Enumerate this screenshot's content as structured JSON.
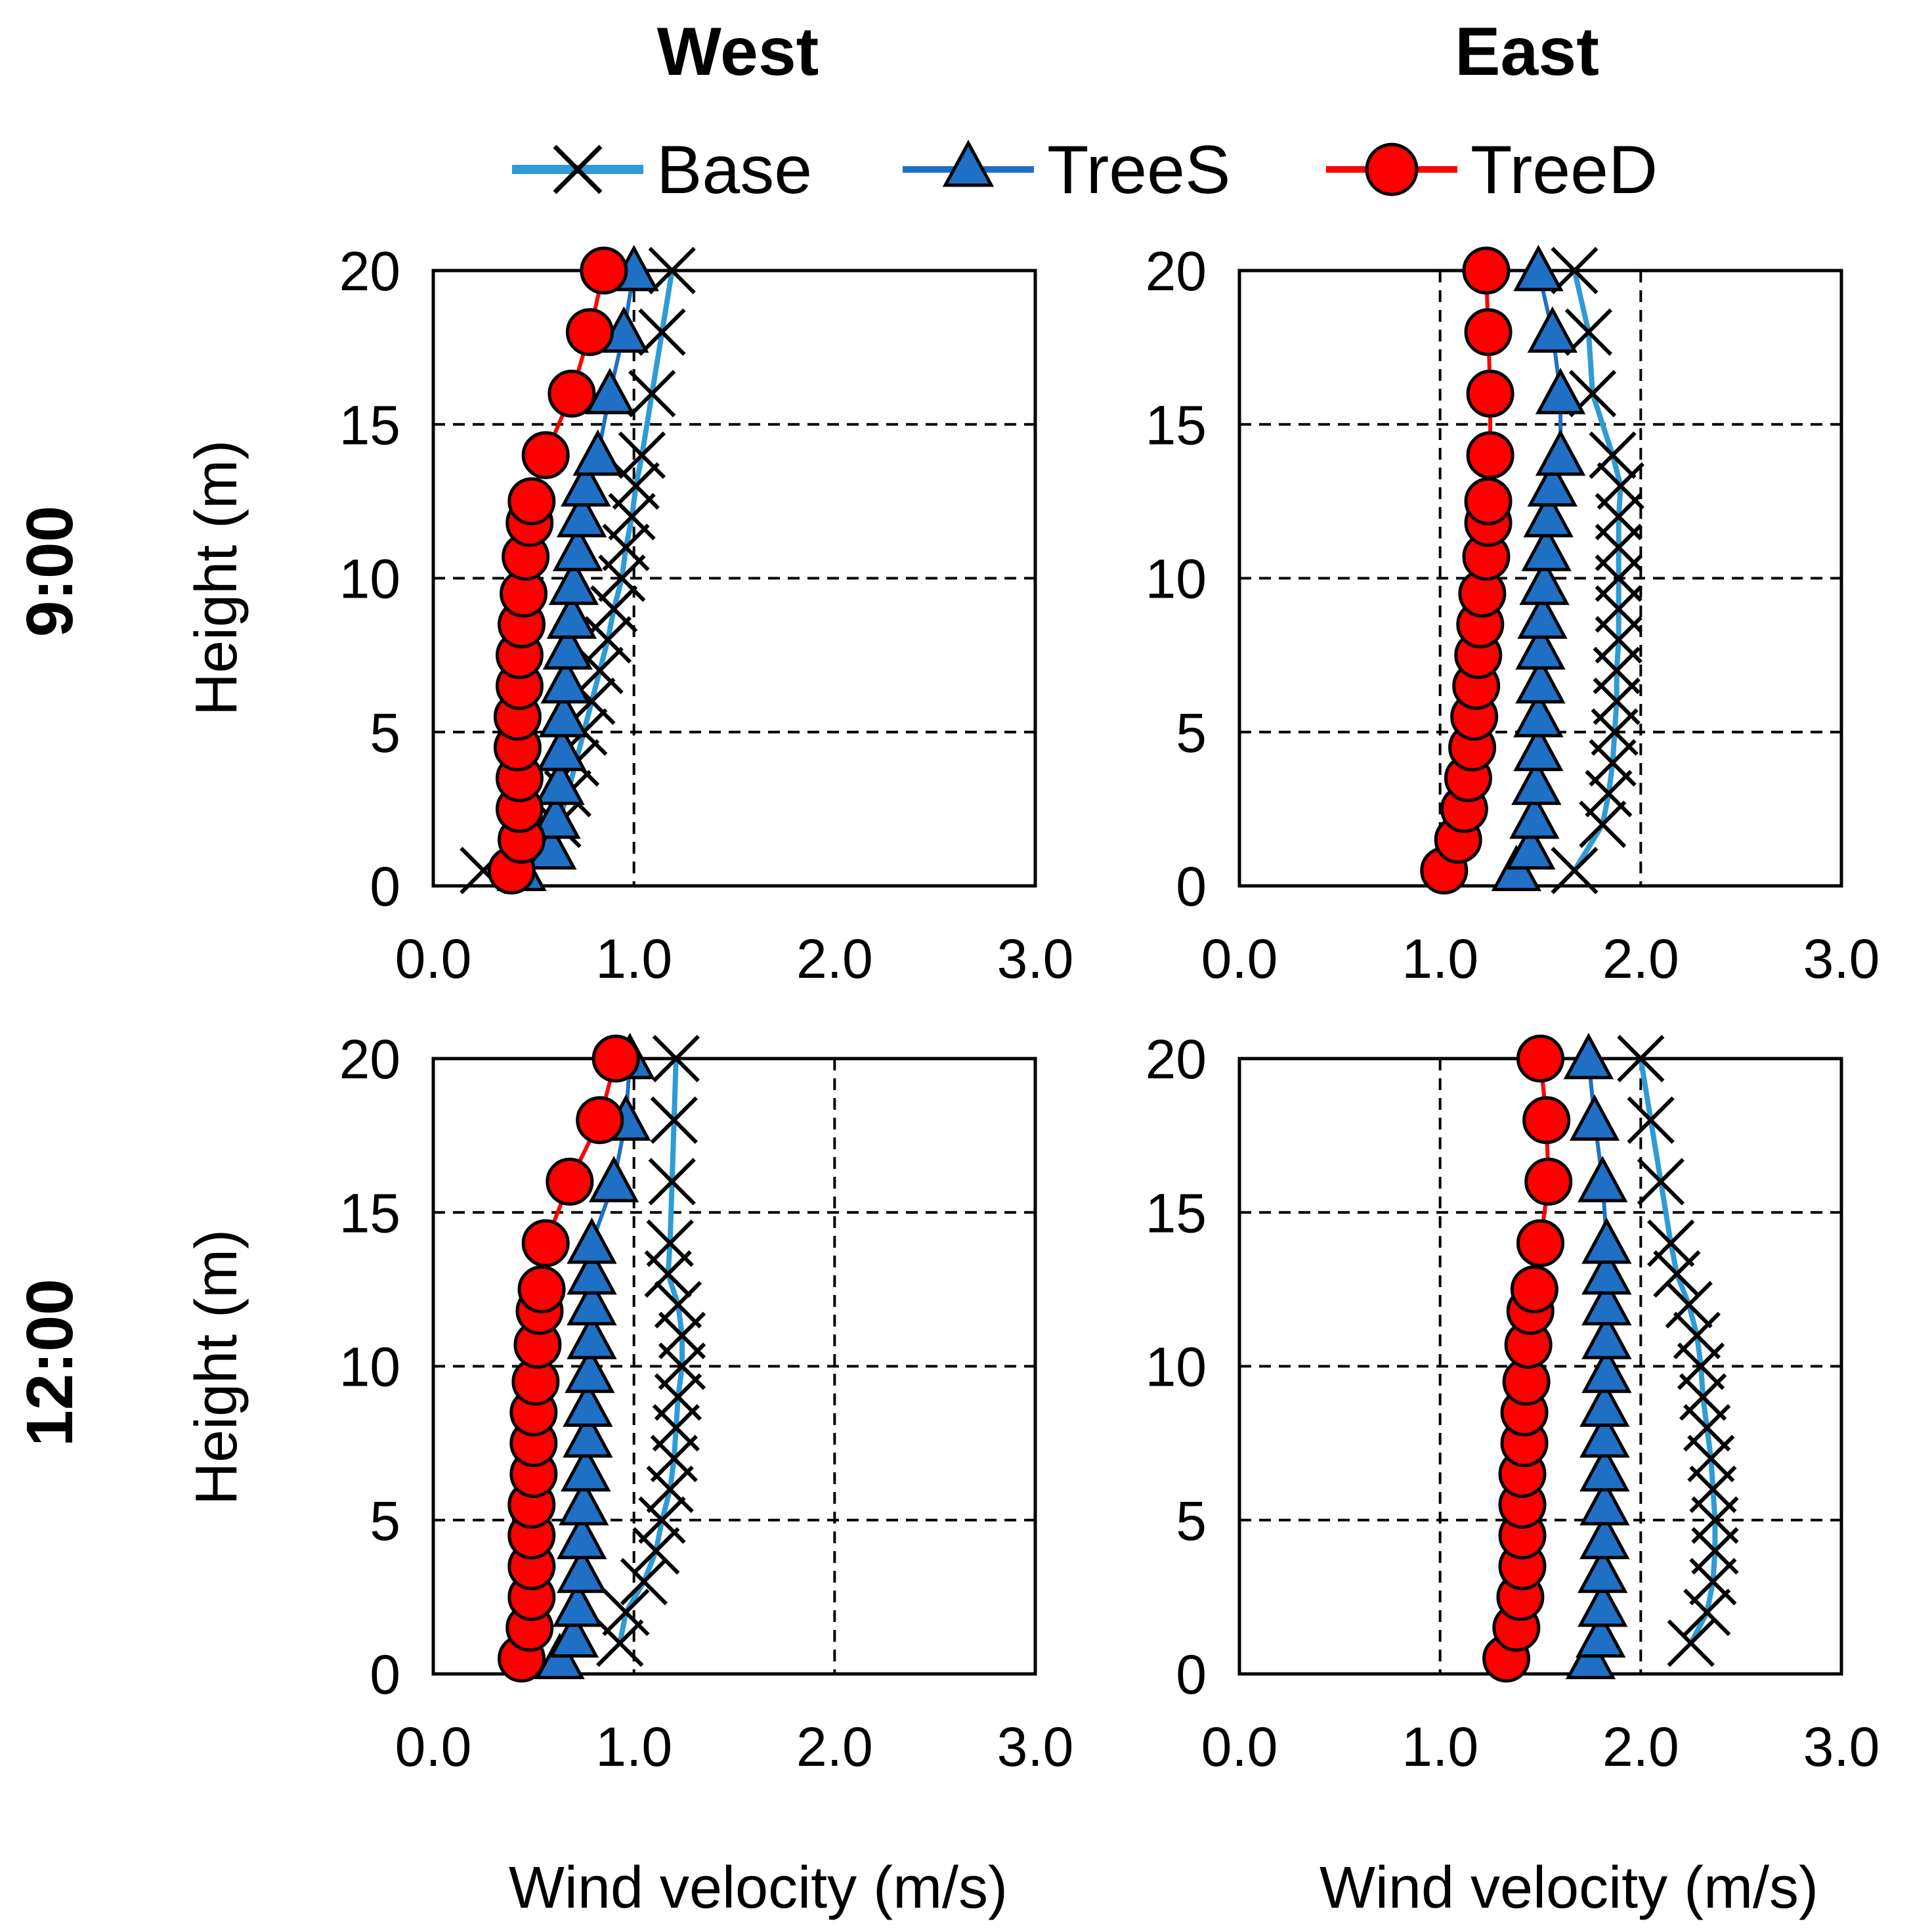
{
  "figure": {
    "column_titles": [
      "West",
      "East"
    ],
    "row_titles": [
      "9:00",
      "12:00"
    ],
    "legend": [
      {
        "name": "Base",
        "marker": "x",
        "color": "#2E9BD6"
      },
      {
        "name": "TreeS",
        "marker": "triangle",
        "color": "#1F6FC5"
      },
      {
        "name": "TreeD",
        "marker": "circle",
        "color": "#FF0000"
      }
    ],
    "ylabel": "Height (m)",
    "xlabel": "Wind velocity (m/s)",
    "x_ticks": [
      "0.0",
      "1.0",
      "2.0",
      "3.0"
    ],
    "y_ticks": [
      "0",
      "5",
      "10",
      "15",
      "20"
    ],
    "colors": {
      "base_line": "#2E9BD6",
      "trees_fill": "#1F6FC5",
      "treed_fill": "#FF0000",
      "treed_line": "#FF0000",
      "marker_edge": "#000000"
    }
  },
  "chart_data": [
    {
      "id": "west-0900",
      "type": "line",
      "title": "West",
      "row": "9:00",
      "xlabel": "Wind velocity (m/s)",
      "ylabel": "Height (m)",
      "xlim": [
        0,
        3
      ],
      "ylim": [
        0,
        20
      ],
      "grid": "dashed",
      "series": [
        {
          "name": "Base",
          "x": [
            0.25,
            0.62,
            0.67,
            0.71,
            0.75,
            0.79,
            0.83,
            0.87,
            0.9,
            0.94,
            0.96,
            0.99,
            1.01,
            1.04,
            1.09,
            1.14,
            1.19
          ],
          "y": [
            0.5,
            2,
            3,
            4,
            5,
            6,
            7,
            8,
            9,
            10,
            11,
            12,
            13,
            14,
            16,
            18,
            20
          ]
        },
        {
          "name": "TreeS",
          "x": [
            0.44,
            0.59,
            0.61,
            0.63,
            0.64,
            0.65,
            0.66,
            0.67,
            0.69,
            0.7,
            0.72,
            0.74,
            0.76,
            0.82,
            0.88,
            0.95,
            1.0
          ],
          "y": [
            0.5,
            1.2,
            2.2,
            3.3,
            4.4,
            5.5,
            6.6,
            7.7,
            8.7,
            9.8,
            10.9,
            12,
            13,
            14,
            16,
            18,
            20
          ]
        },
        {
          "name": "TreeD",
          "x": [
            0.39,
            0.44,
            0.43,
            0.43,
            0.42,
            0.42,
            0.43,
            0.43,
            0.44,
            0.45,
            0.46,
            0.48,
            0.49,
            0.56,
            0.69,
            0.78,
            0.85
          ],
          "y": [
            0.5,
            1.5,
            2.5,
            3.5,
            4.5,
            5.5,
            6.5,
            7.5,
            8.5,
            9.5,
            10.7,
            11.8,
            12.5,
            14,
            16,
            18,
            20
          ]
        }
      ]
    },
    {
      "id": "east-0900",
      "type": "line",
      "title": "East",
      "row": "9:00",
      "xlabel": "Wind velocity (m/s)",
      "ylabel": "Height (m)",
      "xlim": [
        0,
        3
      ],
      "ylim": [
        0,
        20
      ],
      "grid": "dashed",
      "series": [
        {
          "name": "Base",
          "x": [
            1.67,
            1.81,
            1.84,
            1.86,
            1.87,
            1.88,
            1.88,
            1.89,
            1.89,
            1.89,
            1.89,
            1.89,
            1.9,
            1.86,
            1.76,
            1.74,
            1.67
          ],
          "y": [
            0.5,
            2,
            3,
            4,
            5,
            6,
            7,
            8,
            9,
            10,
            11,
            12,
            13,
            14,
            16,
            18,
            20
          ]
        },
        {
          "name": "TreeS",
          "x": [
            1.38,
            1.45,
            1.47,
            1.48,
            1.49,
            1.49,
            1.5,
            1.5,
            1.51,
            1.52,
            1.53,
            1.54,
            1.56,
            1.6,
            1.6,
            1.56,
            1.49
          ],
          "y": [
            0.5,
            1.2,
            2.2,
            3.3,
            4.4,
            5.5,
            6.6,
            7.7,
            8.7,
            9.8,
            10.9,
            12,
            13,
            14,
            16,
            18,
            20
          ]
        },
        {
          "name": "TreeD",
          "x": [
            1.02,
            1.09,
            1.12,
            1.14,
            1.16,
            1.17,
            1.18,
            1.19,
            1.2,
            1.21,
            1.23,
            1.24,
            1.24,
            1.25,
            1.25,
            1.24,
            1.23
          ],
          "y": [
            0.5,
            1.5,
            2.5,
            3.5,
            4.5,
            5.5,
            6.5,
            7.5,
            8.5,
            9.5,
            10.7,
            11.8,
            12.5,
            14,
            16,
            18,
            20
          ]
        }
      ]
    },
    {
      "id": "west-1200",
      "type": "line",
      "title": "West",
      "row": "12:00",
      "xlabel": "Wind velocity (m/s)",
      "ylabel": "Height (m)",
      "xlim": [
        0,
        3
      ],
      "ylim": [
        0,
        20
      ],
      "grid": "dashed",
      "series": [
        {
          "name": "Base",
          "x": [
            0.93,
            0.96,
            1.05,
            1.11,
            1.14,
            1.18,
            1.2,
            1.21,
            1.22,
            1.24,
            1.24,
            1.22,
            1.17,
            1.18,
            1.19,
            1.2,
            1.21
          ],
          "y": [
            1,
            2,
            3,
            4,
            5,
            6,
            7,
            8,
            9,
            10,
            11,
            12,
            13,
            14,
            16,
            18,
            20
          ]
        },
        {
          "name": "TreeS",
          "x": [
            0.63,
            0.7,
            0.72,
            0.74,
            0.74,
            0.75,
            0.76,
            0.77,
            0.77,
            0.78,
            0.79,
            0.79,
            0.79,
            0.79,
            0.9,
            0.96,
            0.98
          ],
          "y": [
            0.5,
            1.2,
            2.2,
            3.3,
            4.4,
            5.5,
            6.6,
            7.7,
            8.7,
            9.8,
            10.9,
            12,
            13,
            14,
            16,
            18,
            20
          ]
        },
        {
          "name": "TreeD",
          "x": [
            0.44,
            0.48,
            0.49,
            0.49,
            0.49,
            0.49,
            0.5,
            0.5,
            0.5,
            0.51,
            0.52,
            0.53,
            0.54,
            0.56,
            0.68,
            0.83,
            0.91
          ],
          "y": [
            0.5,
            1.5,
            2.5,
            3.5,
            4.5,
            5.5,
            6.5,
            7.5,
            8.5,
            9.5,
            10.7,
            11.8,
            12.5,
            14,
            16,
            18,
            20
          ]
        }
      ]
    },
    {
      "id": "east-1200",
      "type": "line",
      "title": "East",
      "row": "12:00",
      "xlabel": "Wind velocity (m/s)",
      "ylabel": "Height (m)",
      "xlim": [
        0,
        3
      ],
      "ylim": [
        0,
        20
      ],
      "grid": "dashed",
      "series": [
        {
          "name": "Base",
          "x": [
            2.25,
            2.33,
            2.36,
            2.37,
            2.37,
            2.36,
            2.35,
            2.33,
            2.31,
            2.3,
            2.28,
            2.24,
            2.18,
            2.15,
            2.1,
            2.05,
            2.0
          ],
          "y": [
            1,
            2,
            3,
            4,
            5,
            6,
            7,
            8,
            9,
            10,
            11,
            12,
            13,
            14,
            16,
            18,
            20
          ]
        },
        {
          "name": "TreeS",
          "x": [
            1.75,
            1.8,
            1.81,
            1.81,
            1.82,
            1.82,
            1.82,
            1.82,
            1.82,
            1.83,
            1.83,
            1.83,
            1.83,
            1.83,
            1.81,
            1.77,
            1.74
          ],
          "y": [
            0.5,
            1.2,
            2.2,
            3.3,
            4.4,
            5.5,
            6.6,
            7.7,
            8.7,
            9.8,
            10.9,
            12,
            13,
            14,
            16,
            18,
            20
          ]
        },
        {
          "name": "TreeD",
          "x": [
            1.33,
            1.38,
            1.4,
            1.41,
            1.41,
            1.41,
            1.41,
            1.42,
            1.42,
            1.43,
            1.44,
            1.45,
            1.47,
            1.5,
            1.54,
            1.53,
            1.5
          ],
          "y": [
            0.5,
            1.5,
            2.5,
            3.5,
            4.5,
            5.5,
            6.5,
            7.5,
            8.5,
            9.5,
            10.7,
            11.8,
            12.5,
            14,
            16,
            18,
            20
          ]
        }
      ]
    }
  ]
}
